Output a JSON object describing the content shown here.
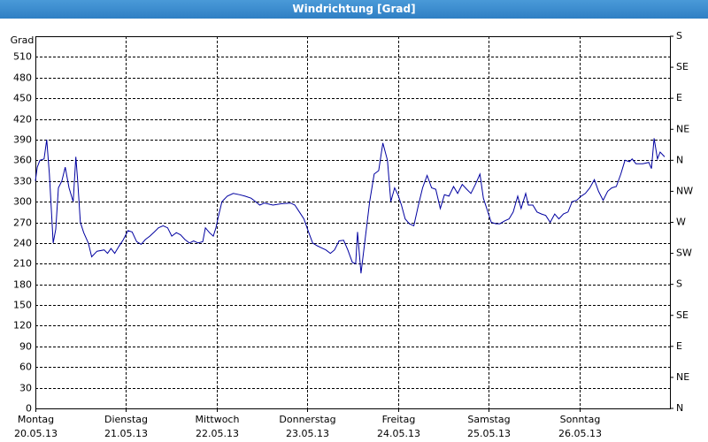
{
  "chart_data": {
    "type": "line",
    "title": "Windrichtung [Grad]",
    "y_label": "Grad",
    "xlim": [
      0,
      168
    ],
    "ylim": [
      0,
      540
    ],
    "y2lim": [
      0,
      540
    ],
    "grid": true,
    "xticks": [
      {
        "value": 0,
        "label": [
          "Montag",
          "20.05.13"
        ]
      },
      {
        "value": 24,
        "label": [
          "Dienstag",
          "21.05.13"
        ]
      },
      {
        "value": 48,
        "label": [
          "Mittwoch",
          "22.05.13"
        ]
      },
      {
        "value": 72,
        "label": [
          "Donnerstag",
          "23.05.13"
        ]
      },
      {
        "value": 96,
        "label": [
          "Freitag",
          "24.05.13"
        ]
      },
      {
        "value": 120,
        "label": [
          "Samstag",
          "25.05.13"
        ]
      },
      {
        "value": 144,
        "label": [
          "Sonntag",
          "26.05.13"
        ]
      }
    ],
    "yticks": [
      0,
      30,
      60,
      90,
      120,
      150,
      180,
      210,
      240,
      270,
      300,
      330,
      360,
      390,
      420,
      450,
      480,
      510
    ],
    "y2ticks": [
      {
        "value": 0,
        "label": "N"
      },
      {
        "value": 45,
        "label": "NE"
      },
      {
        "value": 90,
        "label": "E"
      },
      {
        "value": 135,
        "label": "SE"
      },
      {
        "value": 180,
        "label": "S"
      },
      {
        "value": 225,
        "label": "SW"
      },
      {
        "value": 270,
        "label": "W"
      },
      {
        "value": 315,
        "label": "NW"
      },
      {
        "value": 360,
        "label": "N"
      },
      {
        "value": 405,
        "label": "NE"
      },
      {
        "value": 450,
        "label": "E"
      },
      {
        "value": 495,
        "label": "SE"
      },
      {
        "value": 540,
        "label": "S"
      }
    ],
    "series": [
      {
        "color": "#0000a0",
        "x": [
          0,
          0.5,
          1.2,
          2.3,
          3.0,
          3.7,
          4.7,
          5.4,
          6.1,
          7.0,
          7.9,
          8.9,
          10.0,
          10.7,
          11.2,
          11.9,
          12.8,
          14.0,
          14.9,
          16.3,
          18.2,
          19.1,
          20.0,
          21.0,
          22.1,
          23.3,
          24.5,
          25.6,
          26.8,
          28.0,
          29.1,
          30.3,
          31.5,
          32.6,
          33.8,
          35.0,
          36.1,
          37.3,
          38.4,
          39.6,
          40.8,
          41.9,
          43.1,
          44.3,
          45.0,
          46.1,
          47.1,
          47.8,
          48.5,
          49.4,
          50.8,
          52.4,
          54.1,
          55.5,
          57.1,
          58.3,
          59.4,
          60.6,
          62.9,
          65.2,
          67.6,
          68.7,
          69.9,
          71.1,
          72.2,
          73.4,
          74.6,
          75.7,
          76.9,
          78.1,
          79.2,
          80.4,
          81.6,
          82.7,
          83.9,
          84.8,
          85.3,
          86.2,
          87.4,
          88.5,
          89.7,
          90.9,
          92.0,
          93.2,
          94.1,
          95.1,
          96.0,
          96.9,
          97.9,
          99.0,
          100.2,
          101.4,
          102.5,
          103.7,
          104.9,
          106.0,
          107.2,
          108.3,
          109.5,
          110.7,
          111.8,
          113.0,
          114.2,
          115.3,
          116.5,
          117.7,
          118.6,
          119.5,
          120.7,
          121.9,
          123.0,
          124.2,
          125.4,
          126.5,
          127.7,
          128.6,
          129.8,
          130.5,
          131.7,
          132.8,
          134.0,
          135.1,
          136.3,
          137.5,
          138.6,
          139.8,
          141.0,
          142.1,
          143.3,
          144.5,
          145.6,
          146.8,
          148.0,
          149.1,
          150.3,
          151.5,
          152.6,
          153.8,
          155.0,
          156.1,
          157.3,
          158.0,
          159.0,
          160.8,
          162.4,
          163.1,
          163.8,
          164.7,
          165.4,
          166.6
        ],
        "values": [
          330,
          350,
          360,
          362,
          390,
          340,
          240,
          260,
          320,
          330,
          350,
          320,
          300,
          365,
          330,
          270,
          255,
          240,
          220,
          228,
          230,
          225,
          232,
          225,
          235,
          245,
          258,
          256,
          242,
          238,
          245,
          250,
          256,
          262,
          265,
          262,
          250,
          255,
          252,
          245,
          240,
          243,
          240,
          242,
          262,
          255,
          250,
          262,
          280,
          300,
          308,
          312,
          310,
          308,
          305,
          300,
          295,
          298,
          295,
          297,
          298,
          295,
          285,
          275,
          258,
          240,
          236,
          233,
          230,
          225,
          230,
          243,
          244,
          230,
          212,
          210,
          256,
          196,
          250,
          300,
          340,
          345,
          385,
          360,
          300,
          320,
          310,
          295,
          275,
          268,
          265,
          295,
          320,
          338,
          320,
          318,
          290,
          310,
          308,
          322,
          312,
          325,
          318,
          312,
          325,
          340,
          305,
          290,
          270,
          268,
          268,
          272,
          275,
          285,
          308,
          290,
          312,
          295,
          295,
          285,
          282,
          280,
          270,
          282,
          275,
          282,
          285,
          300,
          302,
          308,
          312,
          320,
          332,
          315,
          302,
          315,
          320,
          322,
          340,
          360,
          358,
          362,
          355,
          355,
          357,
          348,
          392,
          362,
          372,
          365
        ]
      }
    ]
  }
}
